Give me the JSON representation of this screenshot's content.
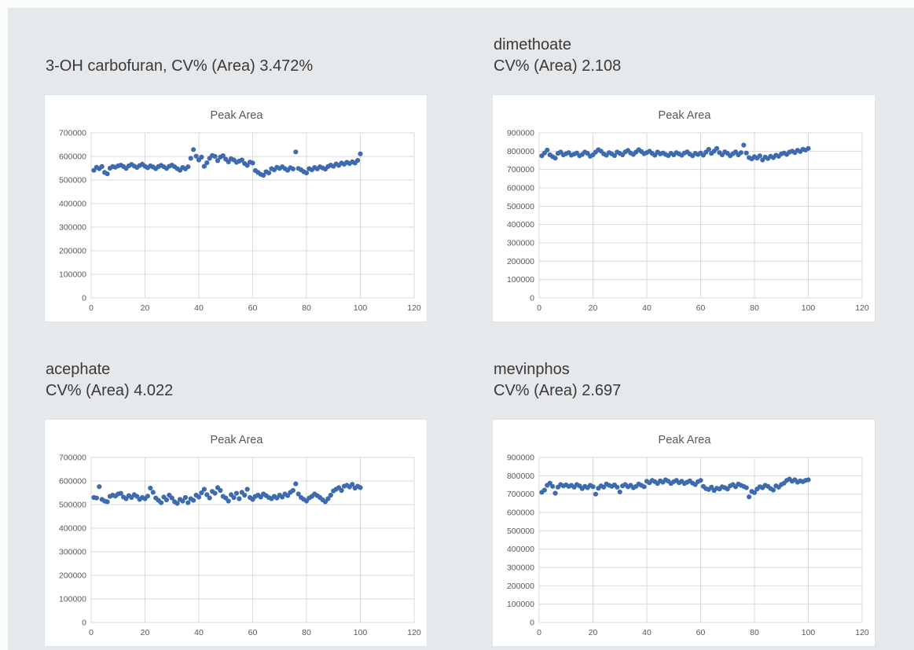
{
  "page": {
    "background": "#fafbfb",
    "canvas_background": "#e5e9ec"
  },
  "colors": {
    "marker": "#3E6AB0",
    "gridline": "#d9d9d9",
    "axis_line": "#bfbfbf",
    "chart_text": "#595959",
    "heading_text": "#3c3836",
    "panel_background": "#ffffff",
    "panel_border": "#e0e3e6"
  },
  "panels": [
    {
      "heading": [
        "3-OH carbofuran, CV% (Area) 3.472%"
      ]
    },
    {
      "heading": [
        "dimethoate",
        "CV% (Area) 2.108"
      ]
    },
    {
      "heading": [
        "acephate",
        "CV% (Area) 4.022"
      ]
    },
    {
      "heading": [
        "mevinphos",
        "CV% (Area) 2.697"
      ]
    }
  ],
  "chart_data": [
    {
      "type": "scatter",
      "compound": "3-OH carbofuran",
      "cv_percent_area": "3.472%",
      "title": "Peak Area",
      "xlabel": "",
      "ylabel": "",
      "xlim": [
        0,
        120
      ],
      "ylim": [
        0,
        700000
      ],
      "x_ticks": [
        0,
        20,
        40,
        60,
        80,
        100,
        120
      ],
      "y_ticks": [
        0,
        100000,
        200000,
        300000,
        400000,
        500000,
        600000,
        700000
      ],
      "x_description": "injection index 1-100 (x = point index + 1)",
      "grid": true,
      "legend": false,
      "y": [
        541000,
        554000,
        548000,
        557000,
        532000,
        526000,
        550000,
        557000,
        554000,
        560000,
        563000,
        557000,
        549000,
        560000,
        566000,
        559000,
        553000,
        561000,
        567000,
        558000,
        552000,
        560000,
        555000,
        548000,
        557000,
        562000,
        556000,
        549000,
        558000,
        563000,
        556000,
        548000,
        541000,
        553000,
        547000,
        556000,
        592000,
        629000,
        601000,
        585000,
        597000,
        558000,
        573000,
        592000,
        604000,
        600000,
        582000,
        597000,
        603000,
        588000,
        577000,
        590000,
        585000,
        575000,
        580000,
        585000,
        570000,
        562000,
        576000,
        572000,
        540000,
        532000,
        524000,
        520000,
        535000,
        530000,
        548000,
        543000,
        554000,
        549000,
        556000,
        548000,
        541000,
        552000,
        547000,
        619000,
        549000,
        543000,
        535000,
        530000,
        548000,
        543000,
        553000,
        547000,
        556000,
        551000,
        546000,
        557000,
        563000,
        558000,
        568000,
        562000,
        572000,
        567000,
        575000,
        570000,
        577000,
        572000,
        583000,
        611000
      ]
    },
    {
      "type": "scatter",
      "compound": "dimethoate",
      "cv_percent_area": "2.108",
      "title": "Peak Area",
      "xlabel": "",
      "ylabel": "",
      "xlim": [
        0,
        120
      ],
      "ylim": [
        0,
        900000
      ],
      "x_ticks": [
        0,
        20,
        40,
        60,
        80,
        100,
        120
      ],
      "y_ticks": [
        0,
        100000,
        200000,
        300000,
        400000,
        500000,
        600000,
        700000,
        800000,
        900000
      ],
      "x_description": "injection index 1-100 (x = point index + 1)",
      "grid": true,
      "legend": false,
      "y": [
        775000,
        790000,
        806000,
        780000,
        770000,
        762000,
        788000,
        795000,
        780000,
        786000,
        792000,
        778000,
        784000,
        790000,
        775000,
        782000,
        795000,
        788000,
        772000,
        780000,
        795000,
        808000,
        800000,
        785000,
        778000,
        792000,
        785000,
        776000,
        795000,
        788000,
        780000,
        796000,
        804000,
        790000,
        782000,
        795000,
        808000,
        798000,
        786000,
        792000,
        800000,
        788000,
        778000,
        795000,
        785000,
        790000,
        782000,
        776000,
        788000,
        780000,
        792000,
        785000,
        778000,
        790000,
        796000,
        784000,
        775000,
        788000,
        782000,
        790000,
        778000,
        795000,
        810000,
        788000,
        800000,
        815000,
        792000,
        780000,
        796000,
        788000,
        775000,
        786000,
        796000,
        780000,
        792000,
        833000,
        790000,
        765000,
        758000,
        770000,
        762000,
        775000,
        752000,
        768000,
        760000,
        772000,
        765000,
        778000,
        772000,
        785000,
        790000,
        782000,
        795000,
        800000,
        792000,
        805000,
        798000,
        810000,
        806000,
        815000
      ]
    },
    {
      "type": "scatter",
      "compound": "acephate",
      "cv_percent_area": "4.022",
      "title": "Peak Area",
      "xlabel": "",
      "ylabel": "",
      "xlim": [
        0,
        120
      ],
      "ylim": [
        0,
        700000
      ],
      "x_ticks": [
        0,
        20,
        40,
        60,
        80,
        100,
        120
      ],
      "y_ticks": [
        0,
        100000,
        200000,
        300000,
        400000,
        500000,
        600000,
        700000
      ],
      "x_description": "injection index 1-100 (x = point index + 1)",
      "grid": true,
      "legend": false,
      "y": [
        530000,
        528000,
        576000,
        522000,
        515000,
        512000,
        535000,
        540000,
        536000,
        545000,
        548000,
        532000,
        525000,
        538000,
        530000,
        542000,
        535000,
        522000,
        530000,
        525000,
        536000,
        570000,
        552000,
        528000,
        518000,
        508000,
        532000,
        520000,
        540000,
        528000,
        512000,
        505000,
        522000,
        515000,
        530000,
        508000,
        525000,
        518000,
        540000,
        532000,
        550000,
        565000,
        542000,
        528000,
        556000,
        548000,
        572000,
        560000,
        535000,
        528000,
        515000,
        542000,
        530000,
        548000,
        525000,
        552000,
        540000,
        565000,
        530000,
        522000,
        535000,
        540000,
        532000,
        545000,
        538000,
        530000,
        525000,
        535000,
        528000,
        540000,
        532000,
        545000,
        538000,
        552000,
        560000,
        588000,
        545000,
        530000,
        522000,
        515000,
        528000,
        535000,
        545000,
        538000,
        530000,
        520000,
        512000,
        525000,
        540000,
        558000,
        565000,
        572000,
        560000,
        578000,
        582000,
        575000,
        586000,
        570000,
        578000,
        572000
      ]
    },
    {
      "type": "scatter",
      "compound": "mevinphos",
      "cv_percent_area": "2.697",
      "title": "Peak Area",
      "xlabel": "",
      "ylabel": "",
      "xlim": [
        0,
        120
      ],
      "ylim": [
        0,
        900000
      ],
      "x_ticks": [
        0,
        20,
        40,
        60,
        80,
        100,
        120
      ],
      "y_ticks": [
        0,
        100000,
        200000,
        300000,
        400000,
        500000,
        600000,
        700000,
        800000,
        900000
      ],
      "x_description": "injection index 1-100 (x = point index + 1)",
      "grid": true,
      "legend": false,
      "y": [
        710000,
        722000,
        748000,
        760000,
        742000,
        705000,
        738000,
        752000,
        745000,
        750000,
        742000,
        748000,
        738000,
        752000,
        745000,
        730000,
        742000,
        735000,
        748000,
        740000,
        700000,
        732000,
        745000,
        738000,
        755000,
        748000,
        742000,
        750000,
        738000,
        712000,
        745000,
        752000,
        740000,
        748000,
        735000,
        742000,
        755000,
        748000,
        740000,
        770000,
        762000,
        775000,
        768000,
        758000,
        772000,
        765000,
        778000,
        770000,
        758000,
        768000,
        775000,
        762000,
        770000,
        758000,
        765000,
        772000,
        760000,
        752000,
        768000,
        775000,
        742000,
        730000,
        725000,
        738000,
        720000,
        732000,
        728000,
        740000,
        735000,
        728000,
        745000,
        752000,
        740000,
        755000,
        748000,
        742000,
        735000,
        685000,
        715000,
        708000,
        728000,
        740000,
        735000,
        748000,
        742000,
        730000,
        722000,
        745000,
        738000,
        752000,
        760000,
        775000,
        782000,
        770000,
        778000,
        765000,
        772000,
        768000,
        775000,
        778000
      ]
    }
  ]
}
